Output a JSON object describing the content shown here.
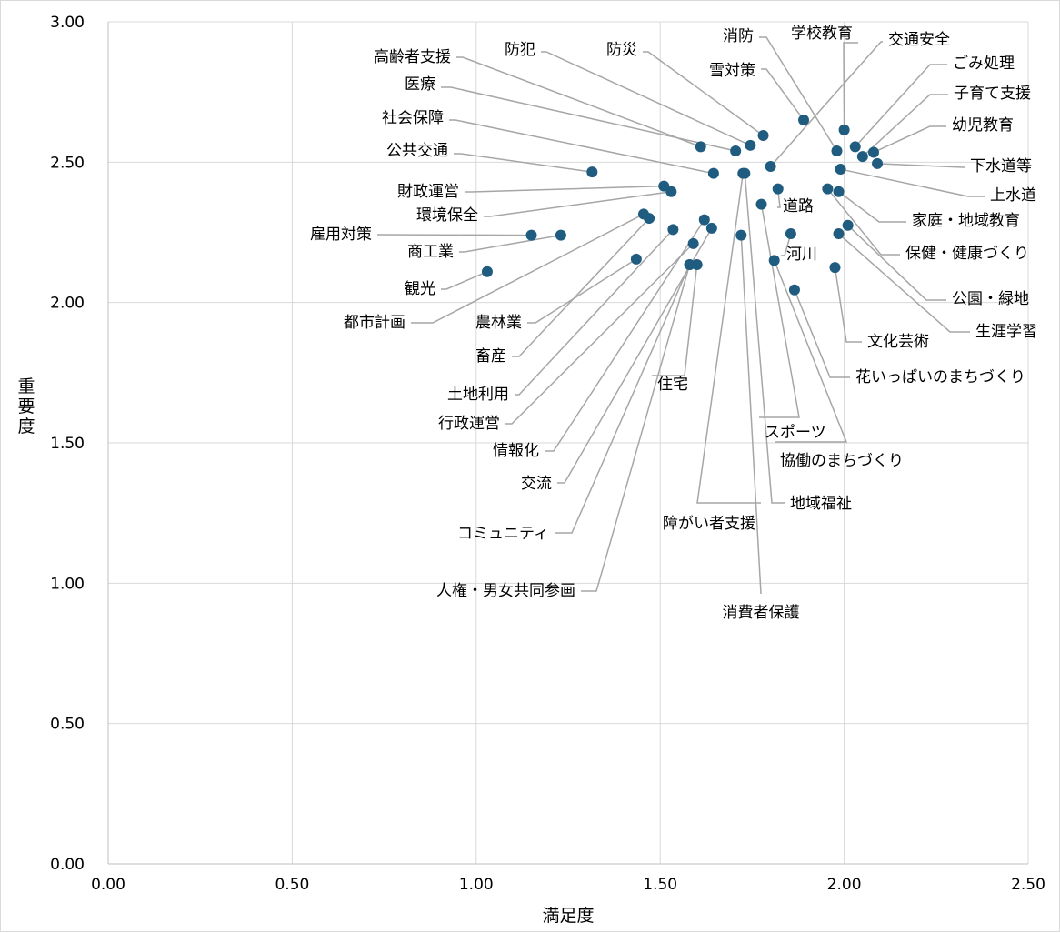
{
  "chart_data": {
    "type": "scatter",
    "title": "",
    "xlabel": "満足度",
    "ylabel": "重要度",
    "xlim": [
      0,
      2.5
    ],
    "ylim": [
      0,
      3.0
    ],
    "x_ticks": [
      "0.00",
      "0.50",
      "1.00",
      "1.50",
      "2.00",
      "2.50"
    ],
    "y_ticks": [
      "0.00",
      "0.50",
      "1.00",
      "1.50",
      "2.00",
      "2.50",
      "3.00"
    ],
    "grid": true,
    "marker_color": "#1f5c80",
    "leader_color": "#a6a6a6",
    "points": [
      {
        "label": "高齢者支援",
        "x": 1.61,
        "y": 2.555
      },
      {
        "label": "防犯",
        "x": 1.745,
        "y": 2.56
      },
      {
        "label": "防災",
        "x": 1.78,
        "y": 2.595
      },
      {
        "label": "消防",
        "x": 1.98,
        "y": 2.54
      },
      {
        "label": "学校教育",
        "x": 2.0,
        "y": 2.615
      },
      {
        "label": "交通安全",
        "x": 1.8,
        "y": 2.485
      },
      {
        "label": "雪対策",
        "x": 1.89,
        "y": 2.65
      },
      {
        "label": "ごみ処理",
        "x": 2.03,
        "y": 2.555
      },
      {
        "label": "子育て支援",
        "x": 2.05,
        "y": 2.52
      },
      {
        "label": "幼児教育",
        "x": 2.08,
        "y": 2.535
      },
      {
        "label": "医療",
        "x": 1.705,
        "y": 2.54
      },
      {
        "label": "社会保障",
        "x": 1.645,
        "y": 2.46
      },
      {
        "label": "公共交通",
        "x": 1.315,
        "y": 2.465
      },
      {
        "label": "下水道等",
        "x": 2.09,
        "y": 2.495
      },
      {
        "label": "上水道",
        "x": 1.99,
        "y": 2.475
      },
      {
        "label": "財政運営",
        "x": 1.51,
        "y": 2.415
      },
      {
        "label": "環境保全",
        "x": 1.53,
        "y": 2.395
      },
      {
        "label": "道路",
        "x": 1.82,
        "y": 2.405
      },
      {
        "label": "家庭・地域教育",
        "x": 1.985,
        "y": 2.395
      },
      {
        "label": "保健・健康づくり",
        "x": 1.955,
        "y": 2.405
      },
      {
        "label": "雇用対策",
        "x": 1.15,
        "y": 2.24
      },
      {
        "label": "商工業",
        "x": 1.23,
        "y": 2.24
      },
      {
        "label": "観光",
        "x": 1.03,
        "y": 2.11
      },
      {
        "label": "公園・緑地",
        "x": 2.01,
        "y": 2.275
      },
      {
        "label": "河川",
        "x": 1.855,
        "y": 2.245
      },
      {
        "label": "生涯学習",
        "x": 1.985,
        "y": 2.245
      },
      {
        "label": "都市計画",
        "x": 1.455,
        "y": 2.315
      },
      {
        "label": "農林業",
        "x": 1.435,
        "y": 2.155
      },
      {
        "label": "文化芸術",
        "x": 1.975,
        "y": 2.125
      },
      {
        "label": "畜産",
        "x": 1.47,
        "y": 2.3
      },
      {
        "label": "花いっぱいのまちづくり",
        "x": 1.865,
        "y": 2.045
      },
      {
        "label": "土地利用",
        "x": 1.535,
        "y": 2.26
      },
      {
        "label": "行政運営",
        "x": 1.59,
        "y": 2.21
      },
      {
        "label": "住宅",
        "x": 1.6,
        "y": 2.135
      },
      {
        "label": "スポーツ",
        "x": 1.775,
        "y": 2.35
      },
      {
        "label": "協働のまちづくり",
        "x": 1.81,
        "y": 2.15
      },
      {
        "label": "情報化",
        "x": 1.62,
        "y": 2.295
      },
      {
        "label": "交流",
        "x": 1.64,
        "y": 2.265
      },
      {
        "label": "地域福祉",
        "x": 1.73,
        "y": 2.46
      },
      {
        "label": "障がい者支援",
        "x": 1.725,
        "y": 2.46
      },
      {
        "label": "コミュニティ",
        "x": 1.58,
        "y": 2.135
      },
      {
        "label": "人権・男女共同参画",
        "x": 1.58,
        "y": 2.135
      },
      {
        "label": "消費者保護",
        "x": 1.72,
        "y": 2.24
      }
    ]
  }
}
